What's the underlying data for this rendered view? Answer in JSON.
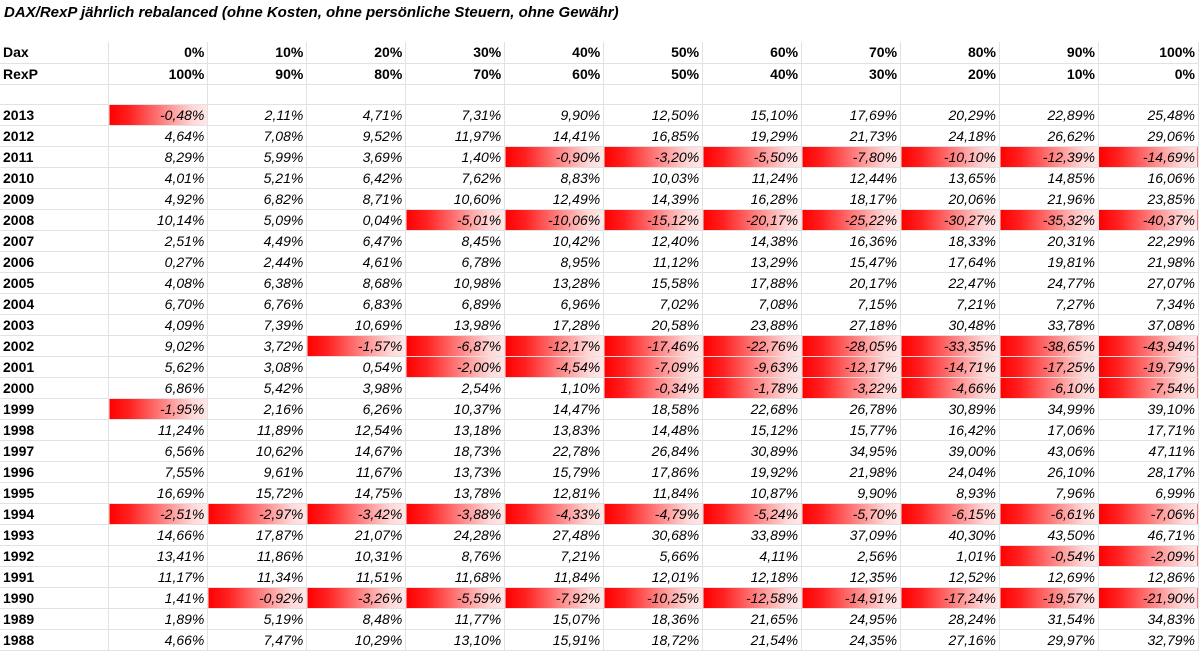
{
  "title": "DAX/RexP jährlich rebalanced (ohne Kosten, ohne persönliche Steuern, ohne Gewähr)",
  "colors": {
    "negative_fill": "#ff0000",
    "gridline": "#e2e2e2"
  },
  "header": {
    "dax_label": "Dax",
    "rexp_label": "RexP",
    "dax": [
      "0%",
      "10%",
      "20%",
      "30%",
      "40%",
      "50%",
      "60%",
      "70%",
      "80%",
      "90%",
      "100%"
    ],
    "rexp": [
      "100%",
      "90%",
      "80%",
      "70%",
      "60%",
      "50%",
      "40%",
      "30%",
      "20%",
      "10%",
      "0%"
    ]
  },
  "rows": [
    {
      "year": "2013",
      "values": [
        "-0,48%",
        "2,11%",
        "4,71%",
        "7,31%",
        "9,90%",
        "12,50%",
        "15,10%",
        "17,69%",
        "20,29%",
        "22,89%",
        "25,48%"
      ]
    },
    {
      "year": "2012",
      "values": [
        "4,64%",
        "7,08%",
        "9,52%",
        "11,97%",
        "14,41%",
        "16,85%",
        "19,29%",
        "21,73%",
        "24,18%",
        "26,62%",
        "29,06%"
      ]
    },
    {
      "year": "2011",
      "values": [
        "8,29%",
        "5,99%",
        "3,69%",
        "1,40%",
        "-0,90%",
        "-3,20%",
        "-5,50%",
        "-7,80%",
        "-10,10%",
        "-12,39%",
        "-14,69%"
      ]
    },
    {
      "year": "2010",
      "values": [
        "4,01%",
        "5,21%",
        "6,42%",
        "7,62%",
        "8,83%",
        "10,03%",
        "11,24%",
        "12,44%",
        "13,65%",
        "14,85%",
        "16,06%"
      ]
    },
    {
      "year": "2009",
      "values": [
        "4,92%",
        "6,82%",
        "8,71%",
        "10,60%",
        "12,49%",
        "14,39%",
        "16,28%",
        "18,17%",
        "20,06%",
        "21,96%",
        "23,85%"
      ]
    },
    {
      "year": "2008",
      "values": [
        "10,14%",
        "5,09%",
        "0,04%",
        "-5,01%",
        "-10,06%",
        "-15,12%",
        "-20,17%",
        "-25,22%",
        "-30,27%",
        "-35,32%",
        "-40,37%"
      ]
    },
    {
      "year": "2007",
      "values": [
        "2,51%",
        "4,49%",
        "6,47%",
        "8,45%",
        "10,42%",
        "12,40%",
        "14,38%",
        "16,36%",
        "18,33%",
        "20,31%",
        "22,29%"
      ]
    },
    {
      "year": "2006",
      "values": [
        "0,27%",
        "2,44%",
        "4,61%",
        "6,78%",
        "8,95%",
        "11,12%",
        "13,29%",
        "15,47%",
        "17,64%",
        "19,81%",
        "21,98%"
      ]
    },
    {
      "year": "2005",
      "values": [
        "4,08%",
        "6,38%",
        "8,68%",
        "10,98%",
        "13,28%",
        "15,58%",
        "17,88%",
        "20,17%",
        "22,47%",
        "24,77%",
        "27,07%"
      ]
    },
    {
      "year": "2004",
      "values": [
        "6,70%",
        "6,76%",
        "6,83%",
        "6,89%",
        "6,96%",
        "7,02%",
        "7,08%",
        "7,15%",
        "7,21%",
        "7,27%",
        "7,34%"
      ]
    },
    {
      "year": "2003",
      "values": [
        "4,09%",
        "7,39%",
        "10,69%",
        "13,98%",
        "17,28%",
        "20,58%",
        "23,88%",
        "27,18%",
        "30,48%",
        "33,78%",
        "37,08%"
      ]
    },
    {
      "year": "2002",
      "values": [
        "9,02%",
        "3,72%",
        "-1,57%",
        "-6,87%",
        "-12,17%",
        "-17,46%",
        "-22,76%",
        "-28,05%",
        "-33,35%",
        "-38,65%",
        "-43,94%"
      ]
    },
    {
      "year": "2001",
      "values": [
        "5,62%",
        "3,08%",
        "0,54%",
        "-2,00%",
        "-4,54%",
        "-7,09%",
        "-9,63%",
        "-12,17%",
        "-14,71%",
        "-17,25%",
        "-19,79%"
      ]
    },
    {
      "year": "2000",
      "values": [
        "6,86%",
        "5,42%",
        "3,98%",
        "2,54%",
        "1,10%",
        "-0,34%",
        "-1,78%",
        "-3,22%",
        "-4,66%",
        "-6,10%",
        "-7,54%"
      ]
    },
    {
      "year": "1999",
      "values": [
        "-1,95%",
        "2,16%",
        "6,26%",
        "10,37%",
        "14,47%",
        "18,58%",
        "22,68%",
        "26,78%",
        "30,89%",
        "34,99%",
        "39,10%"
      ]
    },
    {
      "year": "1998",
      "values": [
        "11,24%",
        "11,89%",
        "12,54%",
        "13,18%",
        "13,83%",
        "14,48%",
        "15,12%",
        "15,77%",
        "16,42%",
        "17,06%",
        "17,71%"
      ]
    },
    {
      "year": "1997",
      "values": [
        "6,56%",
        "10,62%",
        "14,67%",
        "18,73%",
        "22,78%",
        "26,84%",
        "30,89%",
        "34,95%",
        "39,00%",
        "43,06%",
        "47,11%"
      ]
    },
    {
      "year": "1996",
      "values": [
        "7,55%",
        "9,61%",
        "11,67%",
        "13,73%",
        "15,79%",
        "17,86%",
        "19,92%",
        "21,98%",
        "24,04%",
        "26,10%",
        "28,17%"
      ]
    },
    {
      "year": "1995",
      "values": [
        "16,69%",
        "15,72%",
        "14,75%",
        "13,78%",
        "12,81%",
        "11,84%",
        "10,87%",
        "9,90%",
        "8,93%",
        "7,96%",
        "6,99%"
      ]
    },
    {
      "year": "1994",
      "values": [
        "-2,51%",
        "-2,97%",
        "-3,42%",
        "-3,88%",
        "-4,33%",
        "-4,79%",
        "-5,24%",
        "-5,70%",
        "-6,15%",
        "-6,61%",
        "-7,06%"
      ]
    },
    {
      "year": "1993",
      "values": [
        "14,66%",
        "17,87%",
        "21,07%",
        "24,28%",
        "27,48%",
        "30,68%",
        "33,89%",
        "37,09%",
        "40,30%",
        "43,50%",
        "46,71%"
      ]
    },
    {
      "year": "1992",
      "values": [
        "13,41%",
        "11,86%",
        "10,31%",
        "8,76%",
        "7,21%",
        "5,66%",
        "4,11%",
        "2,56%",
        "1,01%",
        "-0,54%",
        "-2,09%"
      ]
    },
    {
      "year": "1991",
      "values": [
        "11,17%",
        "11,34%",
        "11,51%",
        "11,68%",
        "11,84%",
        "12,01%",
        "12,18%",
        "12,35%",
        "12,52%",
        "12,69%",
        "12,86%"
      ]
    },
    {
      "year": "1990",
      "values": [
        "1,41%",
        "-0,92%",
        "-3,26%",
        "-5,59%",
        "-7,92%",
        "-10,25%",
        "-12,58%",
        "-14,91%",
        "-17,24%",
        "-19,57%",
        "-21,90%"
      ]
    },
    {
      "year": "1989",
      "values": [
        "1,89%",
        "5,19%",
        "8,48%",
        "11,77%",
        "15,07%",
        "18,36%",
        "21,65%",
        "24,95%",
        "28,24%",
        "31,54%",
        "34,83%"
      ]
    },
    {
      "year": "1988",
      "values": [
        "4,66%",
        "7,47%",
        "10,29%",
        "13,10%",
        "15,91%",
        "18,72%",
        "21,54%",
        "24,35%",
        "27,16%",
        "29,97%",
        "32,79%"
      ]
    }
  ]
}
